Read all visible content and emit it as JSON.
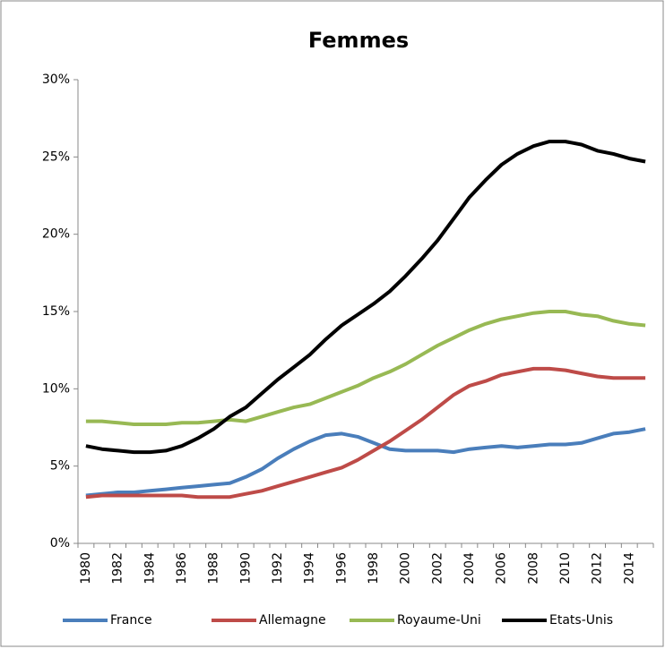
{
  "chart_data": {
    "type": "line",
    "title": "Femmes",
    "categories": [
      "1980",
      null,
      "1982",
      null,
      "1984",
      null,
      "1986",
      null,
      "1988",
      null,
      "1990",
      null,
      "1992",
      null,
      "1994",
      null,
      "1996",
      null,
      "1998",
      null,
      "2000",
      null,
      "2002",
      null,
      "2004",
      null,
      "2006",
      null,
      "2008",
      null,
      "2010",
      null,
      "2012",
      null,
      "2014",
      null
    ],
    "series": [
      {
        "name": "France",
        "color": "#4a7ebb",
        "values": [
          3.1,
          3.2,
          3.3,
          3.3,
          3.4,
          3.5,
          3.6,
          3.7,
          3.8,
          3.9,
          4.3,
          4.8,
          5.5,
          6.1,
          6.6,
          7.0,
          7.1,
          6.9,
          6.5,
          6.1,
          6.0,
          6.0,
          6.0,
          5.9,
          6.1,
          6.2,
          6.3,
          6.2,
          6.3,
          6.4,
          6.4,
          6.5,
          6.8,
          7.1,
          7.2,
          7.4
        ]
      },
      {
        "name": "Allemagne",
        "color": "#be4b48",
        "values": [
          3.0,
          3.1,
          3.1,
          3.1,
          3.1,
          3.1,
          3.1,
          3.0,
          3.0,
          3.0,
          3.2,
          3.4,
          3.7,
          4.0,
          4.3,
          4.6,
          4.9,
          5.4,
          6.0,
          6.6,
          7.3,
          8.0,
          8.8,
          9.6,
          10.2,
          10.5,
          10.9,
          11.1,
          11.3,
          11.3,
          11.2,
          11.0,
          10.8,
          10.7,
          10.7,
          10.7
        ]
      },
      {
        "name": "Royaume-Uni",
        "color": "#98b954",
        "values": [
          7.9,
          7.9,
          7.8,
          7.7,
          7.7,
          7.7,
          7.8,
          7.8,
          7.9,
          8.0,
          7.9,
          8.2,
          8.5,
          8.8,
          9.0,
          9.4,
          9.8,
          10.2,
          10.7,
          11.1,
          11.6,
          12.2,
          12.8,
          13.3,
          13.8,
          14.2,
          14.5,
          14.7,
          14.9,
          15.0,
          15.0,
          14.8,
          14.7,
          14.4,
          14.2,
          14.1
        ]
      },
      {
        "name": "Etats-Unis",
        "color": "#000000",
        "values": [
          6.3,
          6.1,
          6.0,
          5.9,
          5.9,
          6.0,
          6.3,
          6.8,
          7.4,
          8.2,
          8.8,
          9.7,
          10.6,
          11.4,
          12.2,
          13.2,
          14.1,
          14.8,
          15.5,
          16.3,
          17.3,
          18.4,
          19.6,
          21.0,
          22.4,
          23.5,
          24.5,
          25.2,
          25.7,
          26.0,
          26.0,
          25.8,
          25.4,
          25.2,
          24.9,
          24.7
        ]
      }
    ],
    "ylim": [
      0,
      30
    ],
    "yticks": [
      {
        "value": 0,
        "label": "0%"
      },
      {
        "value": 5,
        "label": "5%"
      },
      {
        "value": 10,
        "label": "10%"
      },
      {
        "value": 15,
        "label": "15%"
      },
      {
        "value": 20,
        "label": "20%"
      },
      {
        "value": 25,
        "label": "25%"
      },
      {
        "value": 30,
        "label": "30%"
      }
    ],
    "grid": false,
    "legend": "bottom"
  }
}
